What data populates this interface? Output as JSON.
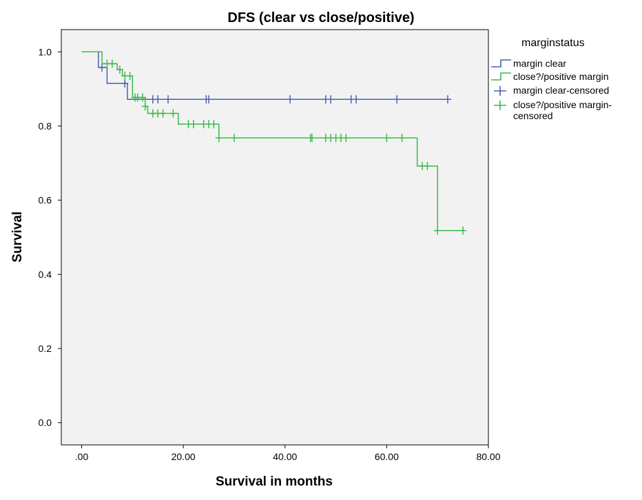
{
  "chart_data": {
    "type": "line",
    "title": "DFS (clear vs close/positive)",
    "xlabel": "Survival in months",
    "ylabel": "Survival",
    "xlim": [
      -4,
      80
    ],
    "ylim": [
      -0.06,
      1.06
    ],
    "x_ticks": [
      {
        "value": 0,
        "label": ".00"
      },
      {
        "value": 20,
        "label": "20.00"
      },
      {
        "value": 40,
        "label": "40.00"
      },
      {
        "value": 60,
        "label": "60.00"
      },
      {
        "value": 80,
        "label": "80.00"
      }
    ],
    "y_ticks": [
      {
        "value": 0.0,
        "label": "0.0"
      },
      {
        "value": 0.2,
        "label": "0.2"
      },
      {
        "value": 0.4,
        "label": "0.4"
      },
      {
        "value": 0.6,
        "label": "0.6"
      },
      {
        "value": 0.8,
        "label": "0.8"
      },
      {
        "value": 1.0,
        "label": "1.0"
      }
    ],
    "grid": false,
    "legend_position": "right",
    "legend_title": "marginstatus",
    "legend_entries": [
      {
        "label": "margin clear",
        "symbol": "line",
        "series": "clear"
      },
      {
        "label": "close?/positive margin",
        "symbol": "line",
        "series": "close"
      },
      {
        "label": "margin clear-censored",
        "symbol": "cross",
        "series": "clear"
      },
      {
        "label": "close?/positive margin-\ncensored",
        "symbol": "cross",
        "series": "close"
      }
    ],
    "series": [
      {
        "key": "clear",
        "name": "margin clear",
        "color": "#4a5fb0",
        "steps": [
          [
            0,
            1.0
          ],
          [
            3.3,
            0.958
          ],
          [
            5.0,
            0.915
          ],
          [
            9.0,
            0.872
          ],
          [
            72,
            0.872
          ]
        ],
        "censored": [
          [
            4,
            0.958
          ],
          [
            8.5,
            0.915
          ],
          [
            14,
            0.872
          ],
          [
            15,
            0.872
          ],
          [
            17,
            0.872
          ],
          [
            24.5,
            0.872
          ],
          [
            25,
            0.872
          ],
          [
            41,
            0.872
          ],
          [
            48,
            0.872
          ],
          [
            49,
            0.872
          ],
          [
            53,
            0.872
          ],
          [
            54,
            0.872
          ],
          [
            62,
            0.872
          ],
          [
            72,
            0.872
          ]
        ]
      },
      {
        "key": "close",
        "name": "close?/positive margin",
        "color": "#3db84a",
        "steps": [
          [
            0,
            1.0
          ],
          [
            4.0,
            0.968
          ],
          [
            7.0,
            0.952
          ],
          [
            8.0,
            0.935
          ],
          [
            10.0,
            0.877
          ],
          [
            12.5,
            0.853
          ],
          [
            13.0,
            0.834
          ],
          [
            19.0,
            0.805
          ],
          [
            27.0,
            0.768
          ],
          [
            66.0,
            0.692
          ],
          [
            70.0,
            0.518
          ],
          [
            75,
            0.518
          ]
        ],
        "censored": [
          [
            5,
            0.968
          ],
          [
            6,
            0.968
          ],
          [
            7.5,
            0.952
          ],
          [
            8.5,
            0.935
          ],
          [
            9.5,
            0.935
          ],
          [
            10.5,
            0.877
          ],
          [
            11,
            0.877
          ],
          [
            12,
            0.877
          ],
          [
            12.5,
            0.853
          ],
          [
            14,
            0.834
          ],
          [
            15,
            0.834
          ],
          [
            16,
            0.834
          ],
          [
            18,
            0.834
          ],
          [
            21,
            0.805
          ],
          [
            22,
            0.805
          ],
          [
            24,
            0.805
          ],
          [
            25,
            0.805
          ],
          [
            26,
            0.805
          ],
          [
            27,
            0.768
          ],
          [
            30,
            0.768
          ],
          [
            45,
            0.768
          ],
          [
            45.3,
            0.768
          ],
          [
            48,
            0.768
          ],
          [
            49,
            0.768
          ],
          [
            50,
            0.768
          ],
          [
            51,
            0.768
          ],
          [
            52,
            0.768
          ],
          [
            60,
            0.768
          ],
          [
            63,
            0.768
          ],
          [
            67,
            0.692
          ],
          [
            68,
            0.692
          ],
          [
            70,
            0.518
          ],
          [
            75,
            0.518
          ]
        ]
      }
    ]
  }
}
